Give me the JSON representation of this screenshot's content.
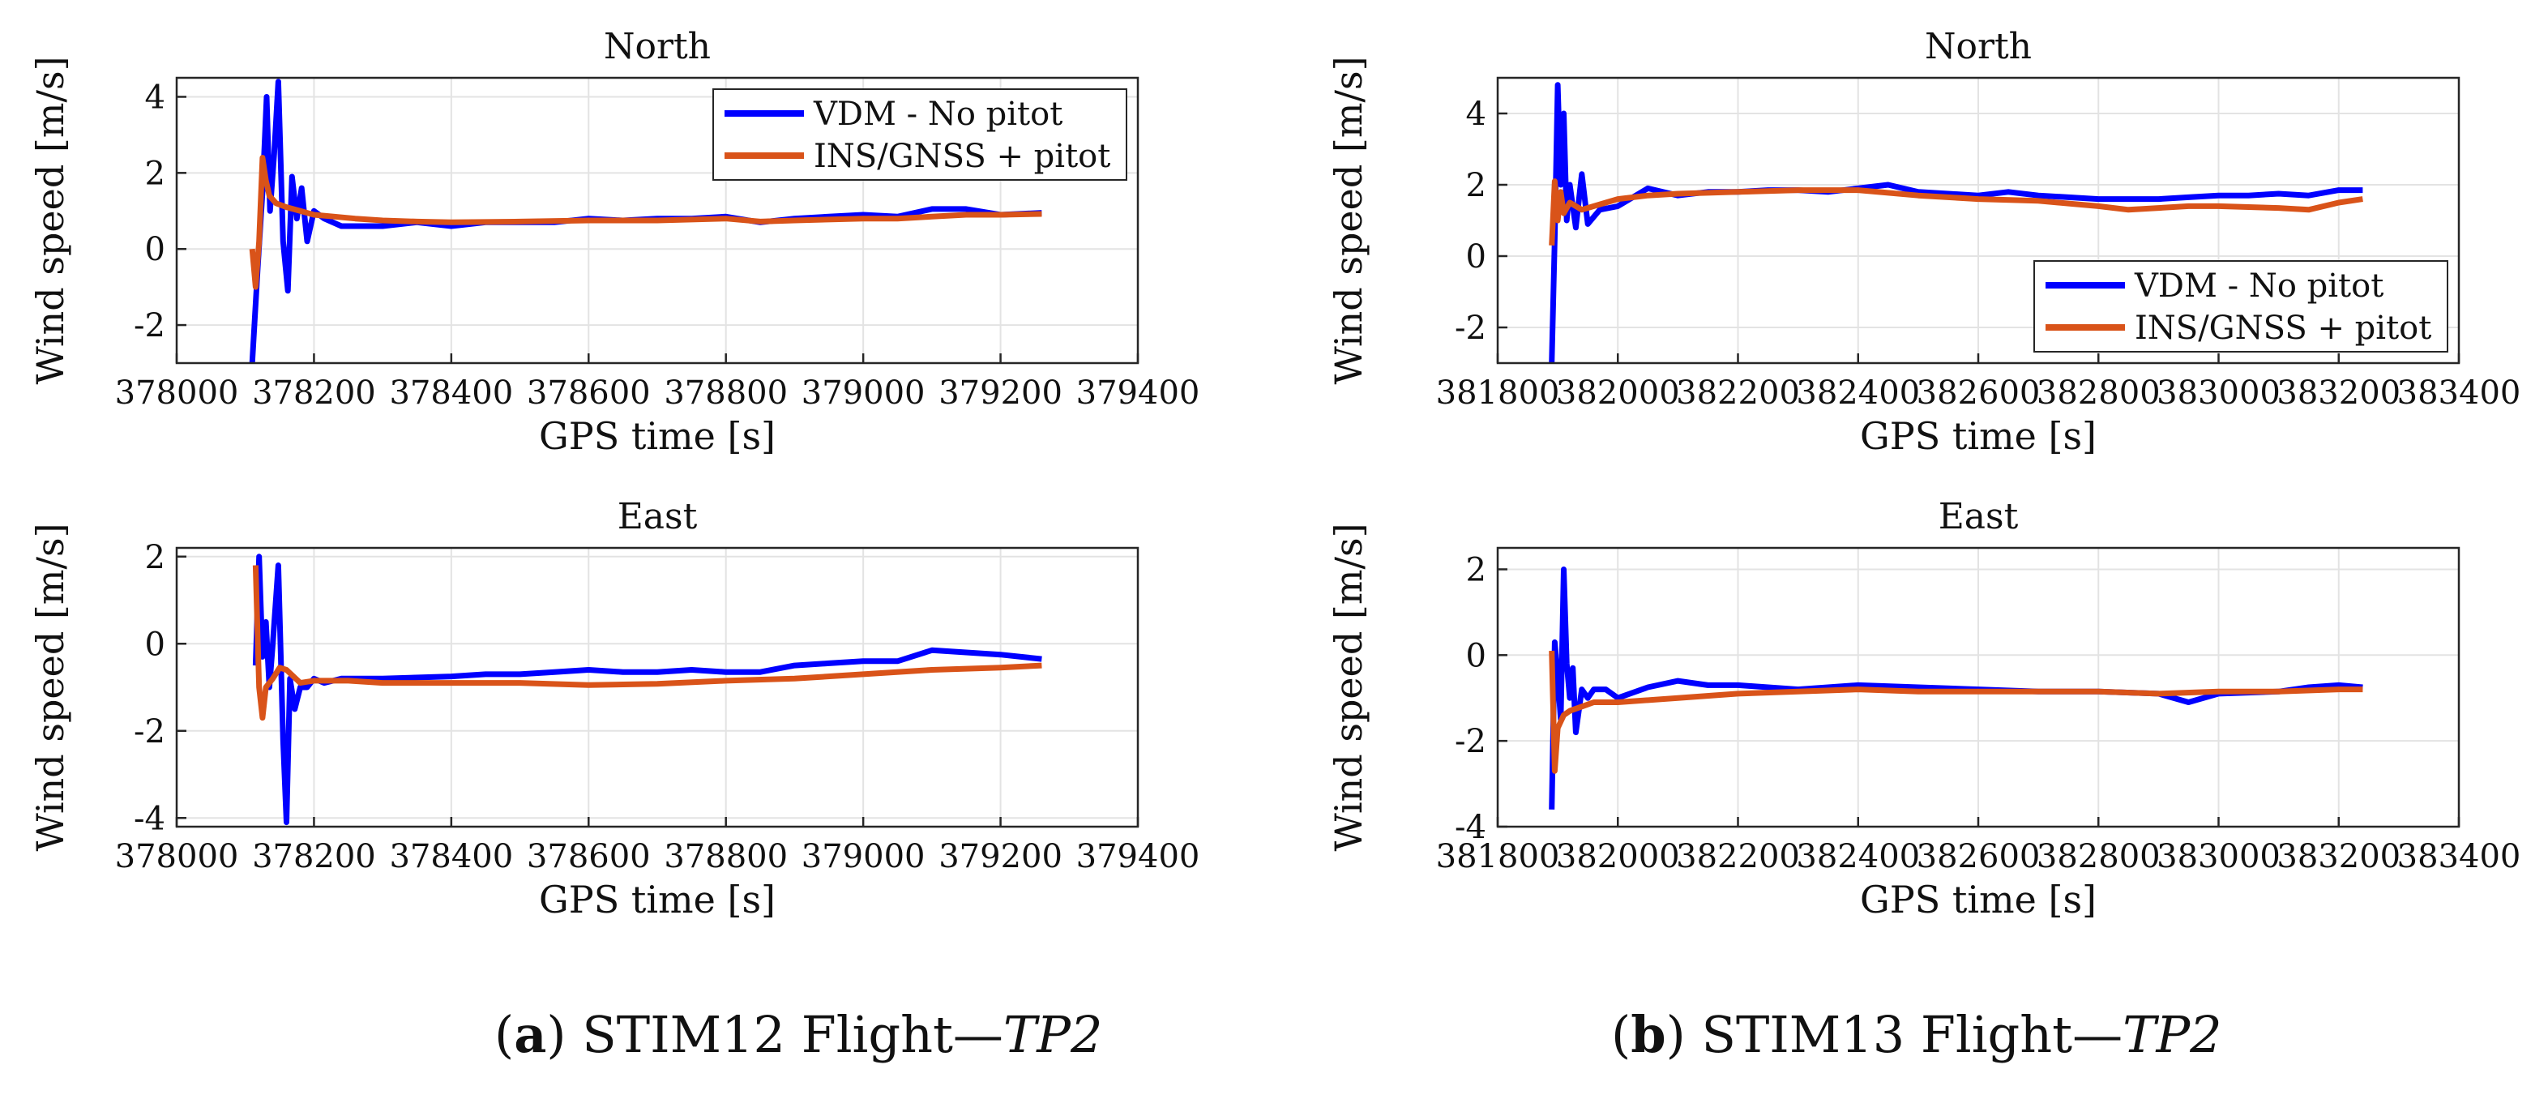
{
  "colors": {
    "vdm": "#0000ff",
    "ins": "#d95319",
    "grid": "#e3e3e3",
    "axis": "#262626"
  },
  "chart_data": [
    {
      "type": "line",
      "panel": "a",
      "title": "North",
      "xlabel": "GPS time [s]",
      "ylabel": "Wind speed [m/s]",
      "xlim": [
        378000,
        379400
      ],
      "ylim": [
        -3,
        4.5
      ],
      "xticks": [
        378000,
        378200,
        378400,
        378600,
        378800,
        379000,
        379200,
        379400
      ],
      "yticks": [
        -2,
        0,
        2,
        4
      ],
      "xtick_labels": [
        "378000",
        "378200",
        "378400",
        "378600",
        "378800",
        "379000",
        "379200",
        "379400"
      ],
      "ytick_labels": [
        "-2",
        "0",
        "2",
        "4"
      ],
      "legend": {
        "position": "top-right",
        "entries": [
          "VDM - No pitot",
          "INS/GNSS + pitot"
        ]
      },
      "series": [
        {
          "name": "VDM - No pitot",
          "color": "#0000ff",
          "x": [
            378110,
            378118,
            378125,
            378131,
            378136,
            378142,
            378148,
            378155,
            378162,
            378168,
            378175,
            378182,
            378190,
            378200,
            378215,
            378240,
            378270,
            378300,
            378350,
            378400,
            378450,
            378500,
            378550,
            378600,
            378650,
            378700,
            378750,
            378800,
            378850,
            378900,
            378950,
            379000,
            379050,
            379100,
            379150,
            379200,
            379260
          ],
          "y": [
            -3.0,
            -0.5,
            1.5,
            4.0,
            1.0,
            2.5,
            4.4,
            0.2,
            -1.1,
            1.9,
            0.8,
            1.6,
            0.2,
            1.0,
            0.8,
            0.6,
            0.6,
            0.6,
            0.7,
            0.6,
            0.7,
            0.7,
            0.7,
            0.8,
            0.75,
            0.8,
            0.8,
            0.85,
            0.7,
            0.8,
            0.85,
            0.9,
            0.85,
            1.05,
            1.05,
            0.9,
            0.95
          ]
        },
        {
          "name": "INS/GNSS + pitot",
          "color": "#d95319",
          "x": [
            378110,
            378115,
            378120,
            378125,
            378130,
            378135,
            378145,
            378160,
            378180,
            378200,
            378230,
            378260,
            378300,
            378350,
            378400,
            378500,
            378600,
            378700,
            378800,
            378850,
            378900,
            379000,
            379050,
            379100,
            379150,
            379200,
            379260
          ],
          "y": [
            0.0,
            -1.0,
            0.2,
            2.4,
            1.8,
            1.4,
            1.2,
            1.1,
            1.0,
            0.9,
            0.85,
            0.8,
            0.75,
            0.72,
            0.7,
            0.72,
            0.75,
            0.75,
            0.8,
            0.72,
            0.75,
            0.8,
            0.8,
            0.85,
            0.9,
            0.9,
            0.92
          ]
        }
      ]
    },
    {
      "type": "line",
      "panel": "a",
      "title": "East",
      "xlabel": "GPS time [s]",
      "ylabel": "Wind speed [m/s]",
      "xlim": [
        378000,
        379400
      ],
      "ylim": [
        -4.2,
        2.2
      ],
      "xticks": [
        378000,
        378200,
        378400,
        378600,
        378800,
        379000,
        379200,
        379400
      ],
      "yticks": [
        -4,
        -2,
        0,
        2
      ],
      "xtick_labels": [
        "378000",
        "378200",
        "378400",
        "378600",
        "378800",
        "379000",
        "379200",
        "379400"
      ],
      "ytick_labels": [
        "-4",
        "-2",
        "0",
        "2"
      ],
      "series": [
        {
          "name": "VDM - No pitot",
          "color": "#0000ff",
          "x": [
            378115,
            378120,
            378125,
            378130,
            378135,
            378140,
            378148,
            378155,
            378160,
            378165,
            378172,
            378180,
            378190,
            378200,
            378215,
            378240,
            378300,
            378400,
            378450,
            378500,
            378550,
            378600,
            378650,
            378700,
            378750,
            378800,
            378850,
            378900,
            378950,
            379000,
            379050,
            379100,
            379150,
            379200,
            379260
          ],
          "y": [
            -0.5,
            2.0,
            -0.3,
            0.5,
            -1.0,
            0.0,
            1.8,
            -2.2,
            -4.1,
            -0.8,
            -1.5,
            -1.0,
            -1.0,
            -0.8,
            -0.9,
            -0.8,
            -0.8,
            -0.75,
            -0.7,
            -0.7,
            -0.65,
            -0.6,
            -0.65,
            -0.65,
            -0.6,
            -0.65,
            -0.65,
            -0.5,
            -0.45,
            -0.4,
            -0.4,
            -0.15,
            -0.2,
            -0.25,
            -0.35
          ]
        },
        {
          "name": "INS/GNSS + pitot",
          "color": "#d95319",
          "x": [
            378115,
            378120,
            378125,
            378130,
            378140,
            378150,
            378160,
            378180,
            378200,
            378250,
            378300,
            378400,
            378500,
            378600,
            378700,
            378800,
            378900,
            379000,
            379100,
            379200,
            379260
          ],
          "y": [
            1.8,
            -1.0,
            -1.7,
            -1.0,
            -0.8,
            -0.55,
            -0.6,
            -0.9,
            -0.85,
            -0.85,
            -0.9,
            -0.9,
            -0.9,
            -0.95,
            -0.92,
            -0.85,
            -0.8,
            -0.7,
            -0.6,
            -0.55,
            -0.5
          ]
        }
      ]
    },
    {
      "type": "line",
      "panel": "b",
      "title": "North",
      "xlabel": "GPS time [s]",
      "ylabel": "Wind speed [m/s]",
      "xlim": [
        381800,
        383400
      ],
      "ylim": [
        -3,
        5
      ],
      "xticks": [
        381800,
        382000,
        382200,
        382400,
        382600,
        382800,
        383000,
        383200,
        383400
      ],
      "yticks": [
        -2,
        0,
        2,
        4
      ],
      "xtick_labels": [
        "381800",
        "382000",
        "382200",
        "382400",
        "382600",
        "382800",
        "383000",
        "383200",
        "383400"
      ],
      "ytick_labels": [
        "-2",
        "0",
        "2",
        "4"
      ],
      "legend": {
        "position": "bottom-right",
        "entries": [
          "VDM - No pitot",
          "INS/GNSS + pitot"
        ]
      },
      "series": [
        {
          "name": "VDM - No pitot",
          "color": "#0000ff",
          "x": [
            381890,
            381895,
            381900,
            381905,
            381910,
            381915,
            381920,
            381930,
            381940,
            381950,
            381970,
            382000,
            382050,
            382100,
            382150,
            382200,
            382250,
            382300,
            382350,
            382400,
            382450,
            382500,
            382550,
            382600,
            382650,
            382700,
            382750,
            382800,
            382850,
            382900,
            382950,
            383000,
            383050,
            383100,
            383150,
            383200,
            383240
          ],
          "y": [
            -3.0,
            0.5,
            4.8,
            2.0,
            4.0,
            1.0,
            2.0,
            0.8,
            2.3,
            0.9,
            1.3,
            1.4,
            1.9,
            1.7,
            1.8,
            1.8,
            1.85,
            1.85,
            1.8,
            1.9,
            2.0,
            1.8,
            1.75,
            1.7,
            1.8,
            1.7,
            1.65,
            1.6,
            1.6,
            1.6,
            1.65,
            1.7,
            1.7,
            1.75,
            1.7,
            1.85,
            1.85
          ]
        },
        {
          "name": "INS/GNSS + pitot",
          "color": "#d95319",
          "x": [
            381890,
            381895,
            381900,
            381905,
            381910,
            381920,
            381930,
            381940,
            381960,
            381980,
            382000,
            382050,
            382100,
            382200,
            382300,
            382400,
            382500,
            382600,
            382700,
            382800,
            382850,
            382900,
            382950,
            383000,
            383100,
            383150,
            383200,
            383240
          ],
          "y": [
            0.3,
            2.1,
            1.0,
            1.8,
            1.2,
            1.5,
            1.4,
            1.3,
            1.4,
            1.5,
            1.6,
            1.7,
            1.75,
            1.8,
            1.85,
            1.85,
            1.7,
            1.6,
            1.55,
            1.4,
            1.3,
            1.35,
            1.4,
            1.4,
            1.35,
            1.3,
            1.5,
            1.6
          ]
        }
      ]
    },
    {
      "type": "line",
      "panel": "b",
      "title": "East",
      "xlabel": "GPS time [s]",
      "ylabel": "Wind speed [m/s]",
      "xlim": [
        381800,
        383400
      ],
      "ylim": [
        -4,
        2.5
      ],
      "xticks": [
        381800,
        382000,
        382200,
        382400,
        382600,
        382800,
        383000,
        383200,
        383400
      ],
      "yticks": [
        -4,
        -2,
        0,
        2
      ],
      "xtick_labels": [
        "381800",
        "382000",
        "382200",
        "382400",
        "382600",
        "382800",
        "383000",
        "383200",
        "383400"
      ],
      "ytick_labels": [
        "-4",
        "-2",
        "0",
        "2"
      ],
      "series": [
        {
          "name": "VDM - No pitot",
          "color": "#0000ff",
          "x": [
            381890,
            381895,
            381900,
            381905,
            381910,
            381915,
            381920,
            381925,
            381930,
            381940,
            381950,
            381960,
            381980,
            382000,
            382050,
            382100,
            382150,
            382200,
            382300,
            382400,
            382500,
            382600,
            382700,
            382800,
            382900,
            382950,
            383000,
            383100,
            383150,
            383200,
            383240
          ],
          "y": [
            -3.6,
            0.3,
            -0.5,
            -1.5,
            2.0,
            -0.2,
            -1.0,
            -0.3,
            -1.8,
            -0.8,
            -1.0,
            -0.8,
            -0.8,
            -1.0,
            -0.75,
            -0.6,
            -0.7,
            -0.7,
            -0.8,
            -0.7,
            -0.75,
            -0.8,
            -0.85,
            -0.85,
            -0.9,
            -1.1,
            -0.9,
            -0.85,
            -0.75,
            -0.7,
            -0.75
          ]
        },
        {
          "name": "INS/GNSS + pitot",
          "color": "#d95319",
          "x": [
            381890,
            381895,
            381900,
            381910,
            381920,
            381940,
            381960,
            382000,
            382100,
            382200,
            382300,
            382400,
            382500,
            382600,
            382700,
            382800,
            382900,
            383000,
            383100,
            383200,
            383240
          ],
          "y": [
            0.1,
            -2.7,
            -1.7,
            -1.4,
            -1.3,
            -1.2,
            -1.1,
            -1.1,
            -1.0,
            -0.9,
            -0.85,
            -0.8,
            -0.85,
            -0.85,
            -0.85,
            -0.85,
            -0.9,
            -0.85,
            -0.85,
            -0.8,
            -0.8
          ]
        }
      ]
    }
  ],
  "captions": [
    {
      "label": "a",
      "text": " STIM12 Flight—",
      "test_point": "TP2"
    },
    {
      "label": "b",
      "text": " STIM13 Flight—",
      "test_point": "TP2"
    }
  ]
}
